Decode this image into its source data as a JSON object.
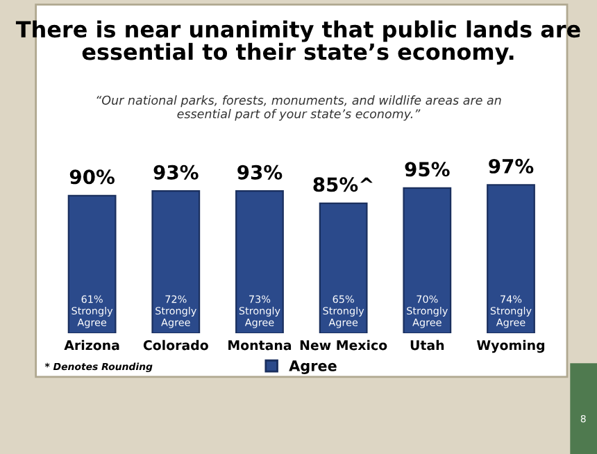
{
  "chart_data": {
    "type": "bar",
    "title": "There is near unanimity that public lands are\nessential to their state’s economy.",
    "subtitle": "“Our national parks, forests, monuments, and wildlife areas are an\nessential part of your state’s economy.”",
    "categories": [
      "Arizona",
      "Colorado",
      "Montana",
      "New Mexico",
      "Utah",
      "Wyoming"
    ],
    "series": [
      {
        "name": "Agree",
        "color": "#2b4a8b",
        "values": [
          90,
          93,
          93,
          85,
          95,
          97
        ],
        "value_labels": [
          "90%",
          "93%",
          "93%",
          "85%^",
          "95%",
          "97%"
        ]
      }
    ],
    "legend": "bottom",
    "grid": false,
    "tick_labels": "x",
    "annotations": [
      "61%\nStrongly\nAgree",
      "72%\nStrongly\nAgree",
      "73%\nStrongly\nAgree",
      "65%\nStrongly\nAgree",
      "70%\nStrongly\nAgree",
      "74%\nStrongly\nAgree",
      "* Denotes Rounding",
      "8"
    ]
  }
}
